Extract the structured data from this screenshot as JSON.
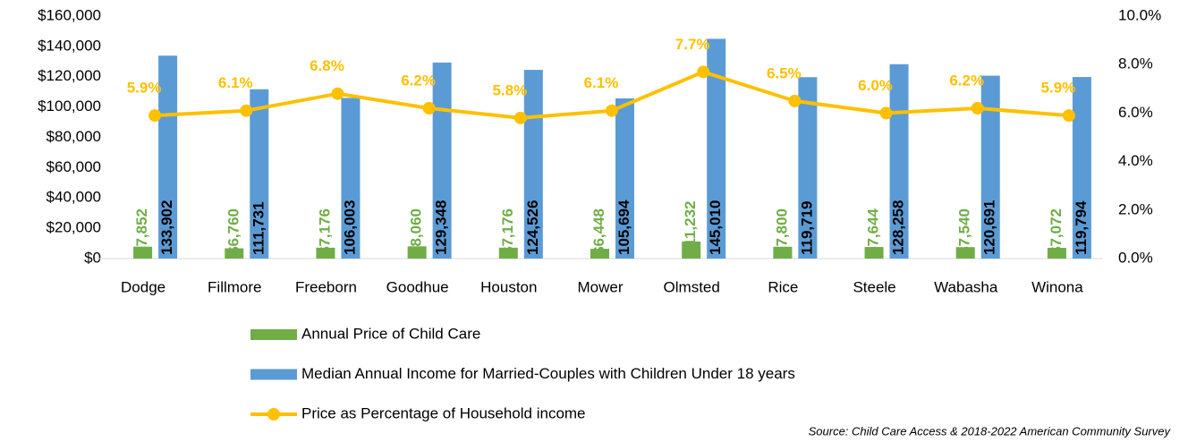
{
  "chart_data": {
    "type": "bar_line",
    "categories": [
      "Dodge",
      "Fillmore",
      "Freeborn",
      "Goodhue",
      "Houston",
      "Mower",
      "Olmsted",
      "Rice",
      "Steele",
      "Wabasha",
      "Winona"
    ],
    "series": [
      {
        "name": "Annual Price of Child Care",
        "color": "#70ad47",
        "type": "bar",
        "values": [
          7852,
          6760,
          7176,
          8060,
          7176,
          6448,
          11232,
          7800,
          7644,
          7540,
          7072
        ],
        "value_labels": [
          "$7,852",
          "$6,760",
          "$7,176",
          "$8,060",
          "$7,176",
          "$6,448",
          "$11,232",
          "$7,800",
          "$7,644",
          "$7,540",
          "$7,072"
        ]
      },
      {
        "name": "Median Annual Income for Married-Couples with Children Under 18 years",
        "color": "#5b9bd5",
        "type": "bar",
        "values": [
          133902,
          111731,
          106003,
          129348,
          124526,
          105694,
          145010,
          119719,
          128258,
          120691,
          119794
        ],
        "value_labels": [
          "133,902",
          "111,731",
          "106,003",
          "129,348",
          "124,526",
          "105,694",
          "145,010",
          "119,719",
          "128,258",
          "120,691",
          "119,794"
        ]
      },
      {
        "name": "Price as Percentage of Household income",
        "color": "#ffc000",
        "type": "line",
        "axis": "y2",
        "values": [
          5.9,
          6.1,
          6.8,
          6.2,
          5.8,
          6.1,
          7.7,
          6.5,
          6.0,
          6.2,
          5.9
        ],
        "value_labels": [
          "5.9%",
          "6.1%",
          "6.8%",
          "6.2%",
          "5.8%",
          "6.1%",
          "7.7%",
          "6.5%",
          "6.0%",
          "6.2%",
          "5.9%"
        ]
      }
    ],
    "ylim": [
      0,
      160000
    ],
    "yticks": [
      {
        "value": 0,
        "label": "$0"
      },
      {
        "value": 20000,
        "label": "$20,000"
      },
      {
        "value": 40000,
        "label": "$40,000"
      },
      {
        "value": 60000,
        "label": "$60,000"
      },
      {
        "value": 80000,
        "label": "$80,000"
      },
      {
        "value": 100000,
        "label": "$100,000"
      },
      {
        "value": 120000,
        "label": "$120,000"
      },
      {
        "value": 140000,
        "label": "$140,000"
      },
      {
        "value": 160000,
        "label": "$160,000"
      }
    ],
    "y2lim": [
      0,
      10
    ],
    "y2ticks": [
      {
        "value": 0,
        "label": "0.0%"
      },
      {
        "value": 2,
        "label": "2.0%"
      },
      {
        "value": 4,
        "label": "4.0%"
      },
      {
        "value": 6,
        "label": "6.0%"
      },
      {
        "value": 8,
        "label": "8.0%"
      },
      {
        "value": 10,
        "label": "10.0%"
      }
    ],
    "note": "Source: Child Care Access & 2018-2022 American Community Survey"
  }
}
